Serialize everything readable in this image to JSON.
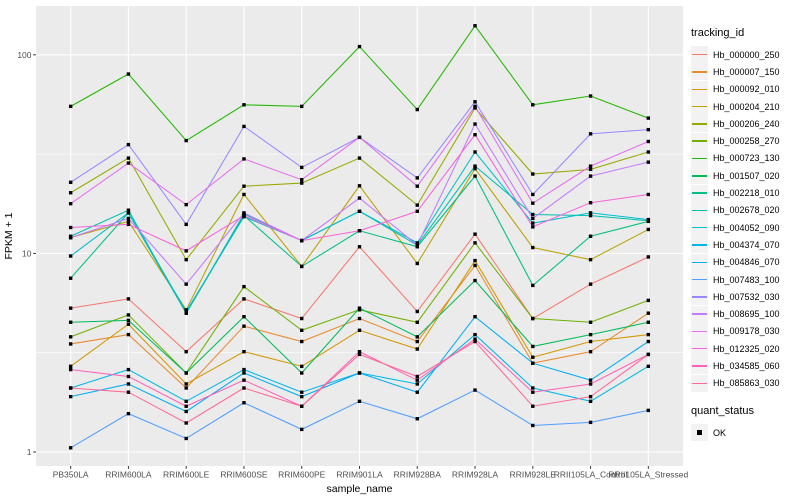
{
  "page": {
    "background": "#FFFFFF"
  },
  "chart_data": {
    "type": "line",
    "title": "",
    "xlabel": "sample_name",
    "ylabel": "FPKM + 1",
    "y_scale": "log10",
    "ylim": [
      0.93,
      180
    ],
    "y_ticks": [
      1,
      10,
      100
    ],
    "y_tick_labels": [
      "1",
      "10",
      "100"
    ],
    "y_minor_gridlines": [
      3.162,
      31.623
    ],
    "grid": true,
    "legend_position": "right",
    "legend_title": "tracking_id",
    "marker": {
      "shape": "square",
      "color": "#000000",
      "size": 3.4
    },
    "x_categories": [
      "PB350LA",
      "RRIM600LA",
      "RRIM600LE",
      "RRIM600SE",
      "RRIM600PE",
      "RRIM901LA",
      "RRIM928BA",
      "RRIM928LA",
      "RRIM928LE",
      "RRII105LA_Control",
      "RRII105LA_Stressed"
    ],
    "series": [
      {
        "name": "Hb_000000_250",
        "color": "#F8766D",
        "values": [
          5.3,
          5.9,
          3.2,
          5.9,
          4.7,
          10.8,
          5.1,
          12.5,
          4.7,
          7.0,
          9.6
        ]
      },
      {
        "name": "Hb_000007_150",
        "color": "#E98A2C",
        "values": [
          3.5,
          3.9,
          2.1,
          4.3,
          3.6,
          4.7,
          3.6,
          8.7,
          2.8,
          3.2,
          5.0
        ]
      },
      {
        "name": "Hb_000092_010",
        "color": "#D49800",
        "values": [
          2.7,
          4.4,
          2.2,
          3.2,
          2.7,
          4.1,
          3.3,
          9.2,
          3.0,
          3.6,
          3.9
        ]
      },
      {
        "name": "Hb_000204_210",
        "color": "#BAA100",
        "values": [
          12.0,
          14.5,
          5.2,
          19.8,
          8.6,
          21.9,
          8.9,
          26.7,
          10.7,
          9.3,
          13.2
        ]
      },
      {
        "name": "Hb_000206_240",
        "color": "#99A800",
        "values": [
          20.2,
          30.2,
          9.3,
          21.8,
          22.6,
          30.2,
          17.5,
          54.0,
          25.1,
          26.5,
          32.4
        ]
      },
      {
        "name": "Hb_000258_270",
        "color": "#6FB000",
        "values": [
          3.8,
          4.9,
          2.5,
          6.8,
          4.1,
          5.2,
          4.5,
          11.3,
          4.7,
          4.5,
          5.8
        ]
      },
      {
        "name": "Hb_000723_130",
        "color": "#22B600",
        "values": [
          55,
          80,
          37,
          56,
          55,
          110,
          53,
          140,
          56,
          62,
          48
        ]
      },
      {
        "name": "Hb_001507_020",
        "color": "#00BB57",
        "values": [
          4.5,
          4.6,
          2.5,
          4.8,
          2.5,
          5.3,
          3.8,
          7.3,
          3.4,
          3.9,
          4.5
        ]
      },
      {
        "name": "Hb_002218_010",
        "color": "#00BE85",
        "values": [
          7.5,
          16.0,
          5.0,
          15.5,
          8.6,
          13.0,
          10.8,
          24.5,
          6.9,
          12.2,
          14.5
        ]
      },
      {
        "name": "Hb_002678_020",
        "color": "#00C0AC",
        "values": [
          12.2,
          16.5,
          5.0,
          15.8,
          11.6,
          16.3,
          11.0,
          27.5,
          15.7,
          15.5,
          14.6
        ]
      },
      {
        "name": "Hb_004052_090",
        "color": "#00BECC",
        "values": [
          9.7,
          16.0,
          5.1,
          15.3,
          11.6,
          16.3,
          11.3,
          32.4,
          14.2,
          16.0,
          14.8
        ]
      },
      {
        "name": "Hb_004374_070",
        "color": "#00B8E5",
        "values": [
          2.1,
          2.6,
          1.8,
          2.6,
          2.0,
          2.5,
          2.2,
          3.9,
          2.1,
          1.8,
          2.7
        ]
      },
      {
        "name": "Hb_004846_070",
        "color": "#00ADF5",
        "values": [
          1.9,
          2.2,
          1.6,
          2.5,
          1.9,
          2.5,
          2.0,
          4.8,
          2.8,
          2.3,
          3.6
        ]
      },
      {
        "name": "Hb_007483_100",
        "color": "#519DFF",
        "values": [
          1.05,
          1.56,
          1.17,
          1.77,
          1.3,
          1.8,
          1.47,
          2.05,
          1.36,
          1.41,
          1.62
        ]
      },
      {
        "name": "Hb_007532_030",
        "color": "#9788FF",
        "values": [
          22.8,
          35.3,
          14.0,
          43.6,
          27.1,
          38.4,
          24.0,
          58.0,
          19.8,
          40.0,
          42.0
        ]
      },
      {
        "name": "Hb_008695_100",
        "color": "#C37AFF",
        "values": [
          12.0,
          15.0,
          7.0,
          16.0,
          11.6,
          19.0,
          11.0,
          44.8,
          15.0,
          24.5,
          28.8
        ]
      },
      {
        "name": "Hb_009178_030",
        "color": "#E56DF0",
        "values": [
          17.8,
          28.5,
          17.6,
          29.9,
          23.5,
          38.4,
          21.8,
          55.0,
          17.9,
          27.5,
          36.6
        ]
      },
      {
        "name": "Hb_012325_020",
        "color": "#F863DC",
        "values": [
          13.5,
          14.0,
          10.3,
          15.5,
          11.6,
          13.0,
          16.3,
          39.6,
          13.6,
          18.0,
          19.8
        ]
      },
      {
        "name": "Hb_034585_060",
        "color": "#FF62B6",
        "values": [
          2.6,
          2.4,
          1.7,
          2.3,
          1.7,
          3.2,
          2.3,
          3.7,
          2.0,
          2.2,
          3.1
        ]
      },
      {
        "name": "Hb_085863_030",
        "color": "#FF6A98",
        "values": [
          2.1,
          2.0,
          1.4,
          2.1,
          1.7,
          3.1,
          2.4,
          3.6,
          1.7,
          1.9,
          3.1
        ]
      }
    ],
    "quant_status_legend": {
      "title": "quant_status",
      "items": [
        {
          "label": "OK",
          "marker": "black-square"
        }
      ]
    },
    "colors": {
      "panel_bg": "#EBEBEB",
      "grid": "#FFFFFF",
      "axis_text": "#4D4D4D",
      "axis_title": "#000000",
      "legend_key_bg": "#F2F2F2",
      "tick": "#333333",
      "point": "#000000"
    }
  }
}
